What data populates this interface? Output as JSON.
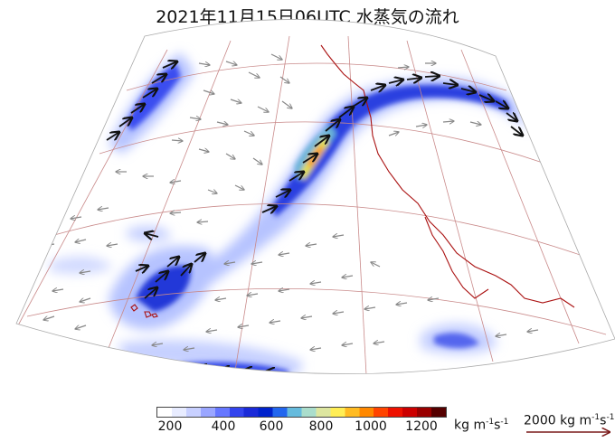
{
  "title": "2021年11月15日06UTC 水蒸気の流れ",
  "legend": {
    "ticks": [
      "200",
      "400",
      "600",
      "800",
      "1000",
      "1200"
    ],
    "unit": {
      "base": "kg m",
      "exp1": "-1",
      "mid": "s",
      "exp2": "-1"
    },
    "reference_vector": {
      "text": "2000 kg m",
      "exp1": "-1",
      "mid": "s",
      "exp2": "-1"
    },
    "colors": [
      "#ffffff",
      "#e8ecff",
      "#c8d0ff",
      "#9aa6ff",
      "#6677ff",
      "#3344ee",
      "#1a2ad8",
      "#0022cc",
      "#2266ee",
      "#66bbdd",
      "#aaddcc",
      "#dde6a0",
      "#ffee55",
      "#ffbb22",
      "#ff8800",
      "#ff4400",
      "#ee1100",
      "#cc0000",
      "#990000",
      "#550000"
    ]
  },
  "colors": {
    "grid": "#c98a8a",
    "coast": "#aa1111",
    "arrow_strong": "#111111",
    "arrow_weak": "#888888",
    "ref_arrow": "#7a1a1a"
  }
}
